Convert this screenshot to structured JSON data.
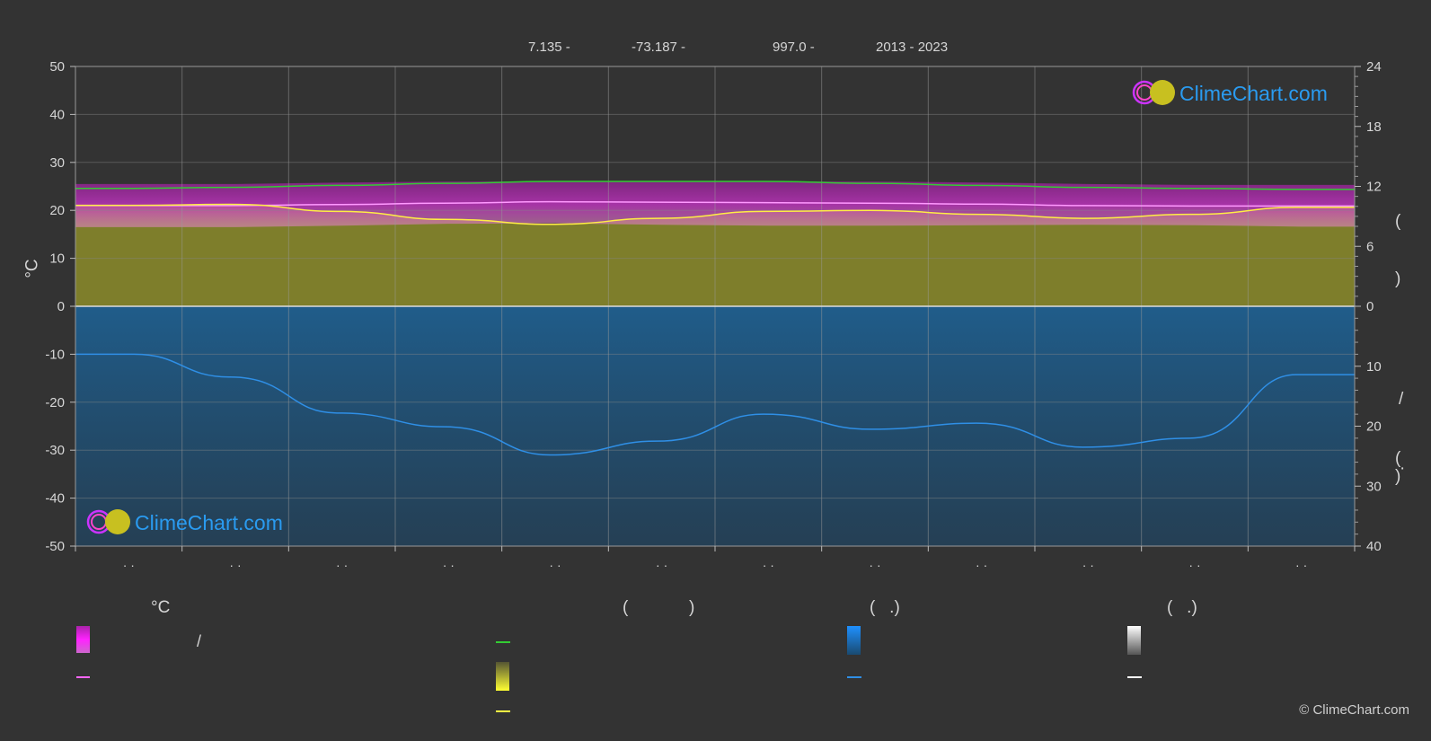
{
  "header": {
    "lat": "7.135 -",
    "lon": "-73.187 -",
    "elevation": "997.0 -",
    "years": "2013 - 2023"
  },
  "axes": {
    "left_unit": "°C",
    "right_labels": [
      "(",
      ")",
      "/",
      "(",
      "·",
      ")"
    ]
  },
  "legend": {
    "col1_title": "°C",
    "col1_slash": "/",
    "col2_title_open": "(",
    "col2_title_close": ")",
    "col3_title": "(   .)",
    "col4_title": "(   .)",
    "colors": {
      "temp_range": "#e020e0",
      "temp_mean": "#ff66ff",
      "daylight": "#33cc33",
      "sunshine": "#e6e633",
      "sunshine_line": "#ffff44",
      "rain": "#1e7fd0",
      "rain_line": "#2f8fe6",
      "snow": "#ffffff"
    }
  },
  "logo": {
    "text": "ClimeChart.com"
  },
  "copyright": "© ClimeChart.com",
  "chart_data": {
    "type": "area",
    "title": "",
    "x_tick_labels": [
      "· ·",
      "· ·",
      "· ·",
      "· ·",
      "· ·",
      "· ·",
      "· ·",
      "· ·",
      "· ·",
      "· ·",
      "· ·",
      "· ·"
    ],
    "left_axis": {
      "ylim": [
        -50,
        50
      ],
      "ticks": [
        50,
        40,
        30,
        20,
        10,
        0,
        -10,
        -20,
        -30,
        -40,
        -50
      ],
      "unit": "°C"
    },
    "right_axis_upper": {
      "ylim": [
        0,
        24
      ],
      "ticks": [
        24,
        18,
        12,
        6,
        0
      ]
    },
    "right_axis_lower": {
      "ylim": [
        0,
        40
      ],
      "ticks": [
        10,
        20,
        30,
        40
      ]
    },
    "grid": true,
    "series": [
      {
        "name": "",
        "kind": "daylight_hours",
        "axis": "right_upper",
        "color": "#33cc33",
        "values": [
          11.8,
          11.9,
          12.1,
          12.3,
          12.5,
          12.5,
          12.5,
          12.3,
          12.1,
          11.9,
          11.8,
          11.7
        ]
      },
      {
        "name": "",
        "kind": "sunshine_hours",
        "axis": "right_upper",
        "color": "#ffee44",
        "values": [
          10.1,
          10.2,
          9.5,
          8.7,
          8.2,
          8.8,
          9.5,
          9.6,
          9.2,
          8.8,
          9.2,
          9.9
        ]
      },
      {
        "name": "",
        "kind": "temperature_max",
        "axis": "left",
        "color": "#d040d0",
        "values": [
          25.5,
          25.5,
          25.8,
          26.0,
          26.0,
          26.0,
          26.0,
          26.0,
          25.8,
          25.5,
          25.3,
          25.3
        ]
      },
      {
        "name": "",
        "kind": "temperature_mean",
        "axis": "left",
        "color": "#ff88ff",
        "values": [
          21.0,
          21.0,
          21.2,
          21.5,
          21.8,
          21.7,
          21.6,
          21.5,
          21.3,
          21.0,
          20.9,
          20.9
        ]
      },
      {
        "name": "",
        "kind": "temperature_min",
        "axis": "left",
        "color": "#e070c0",
        "values": [
          16.5,
          16.5,
          16.8,
          17.2,
          17.3,
          17.0,
          16.8,
          16.8,
          16.9,
          17.0,
          16.9,
          16.6
        ]
      },
      {
        "name": "",
        "kind": "precipitation",
        "axis": "right_lower",
        "color": "#2f8fe6",
        "values": [
          8.0,
          11.8,
          17.8,
          20.1,
          24.8,
          22.5,
          18.0,
          20.5,
          19.5,
          23.5,
          22.0,
          11.4
        ]
      }
    ]
  }
}
